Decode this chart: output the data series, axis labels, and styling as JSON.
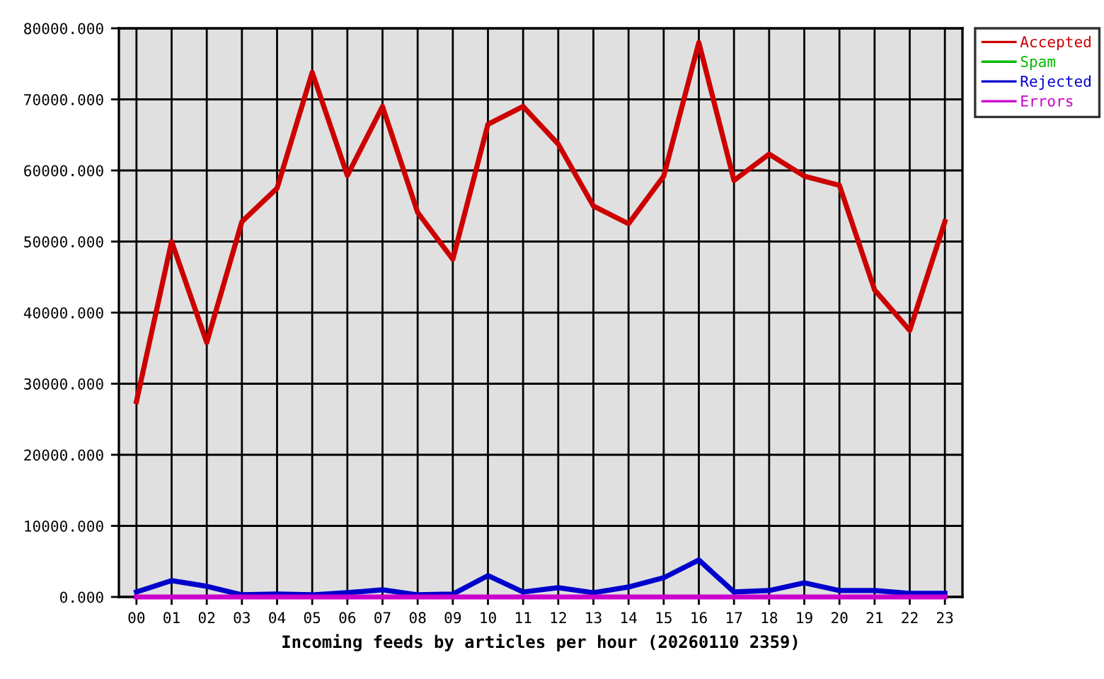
{
  "chart_data": {
    "type": "line",
    "xlabel": "Incoming feeds by articles per hour (20260110 2359)",
    "categories": [
      "00",
      "01",
      "02",
      "03",
      "04",
      "05",
      "06",
      "07",
      "08",
      "09",
      "10",
      "11",
      "12",
      "13",
      "14",
      "15",
      "16",
      "17",
      "18",
      "19",
      "20",
      "21",
      "22",
      "23"
    ],
    "series": [
      {
        "name": "Accepted",
        "color": "#cc0000",
        "values": [
          27500,
          50000,
          35800,
          52800,
          57500,
          73800,
          59300,
          69000,
          54100,
          47500,
          66500,
          69000,
          63700,
          55000,
          52500,
          59200,
          78000,
          58600,
          62300,
          59200,
          57900,
          43200,
          37500,
          52800
        ]
      },
      {
        "name": "Spam",
        "color": "#00bb00",
        "values": [
          null,
          null,
          null,
          null,
          null,
          null,
          null,
          null,
          null,
          null,
          null,
          null,
          null,
          null,
          null,
          null,
          null,
          null,
          null,
          null,
          null,
          null,
          null,
          null
        ]
      },
      {
        "name": "Rejected",
        "color": "#0000cc",
        "values": [
          700,
          2300,
          1500,
          300,
          400,
          300,
          600,
          1000,
          300,
          400,
          3000,
          700,
          1300,
          600,
          1400,
          2700,
          5200,
          700,
          900,
          2000,
          900,
          900,
          500,
          500
        ]
      },
      {
        "name": "Errors",
        "color": "#cc00cc",
        "values": [
          0,
          0,
          0,
          0,
          0,
          0,
          0,
          0,
          0,
          0,
          0,
          0,
          0,
          0,
          0,
          0,
          0,
          0,
          0,
          0,
          0,
          0,
          0,
          0
        ]
      }
    ],
    "ylim": [
      0,
      80000
    ],
    "yticks": [
      {
        "value": 0,
        "label": "0.000"
      },
      {
        "value": 10000,
        "label": "10000.000"
      },
      {
        "value": 20000,
        "label": "20000.000"
      },
      {
        "value": 30000,
        "label": "30000.000"
      },
      {
        "value": 40000,
        "label": "40000.000"
      },
      {
        "value": 50000,
        "label": "50000.000"
      },
      {
        "value": 60000,
        "label": "60000.000"
      },
      {
        "value": 70000,
        "label": "70000.000"
      },
      {
        "value": 80000,
        "label": "80000.000"
      }
    ],
    "grid": true,
    "legend": "top right",
    "line_style": "solid"
  }
}
